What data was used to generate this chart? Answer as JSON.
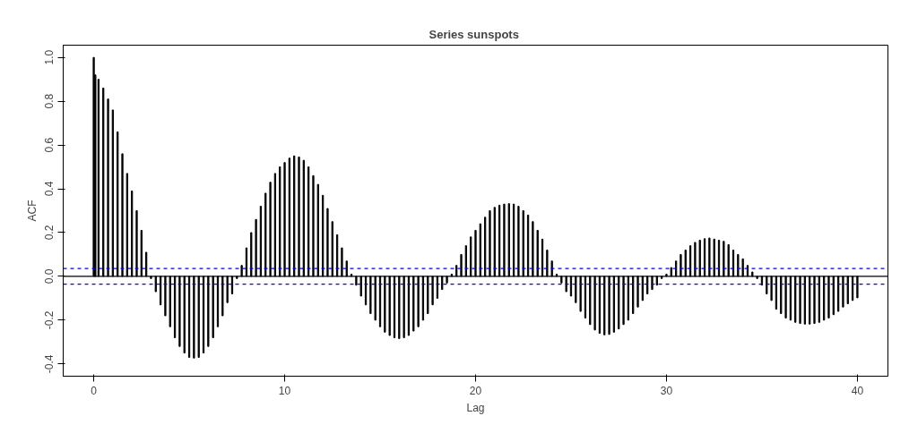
{
  "chart_data": {
    "type": "bar",
    "title": "Series  sunspots",
    "xlabel": "Lag",
    "ylabel": "ACF",
    "x": [
      0,
      0.083,
      0.25,
      0.5,
      0.75,
      1.0,
      1.25,
      1.5,
      1.75,
      2.0,
      2.25,
      2.5,
      2.75,
      3.0,
      3.25,
      3.5,
      3.75,
      4.0,
      4.25,
      4.5,
      4.75,
      5.0,
      5.25,
      5.5,
      5.75,
      6.0,
      6.25,
      6.5,
      6.75,
      7.0,
      7.25,
      7.5,
      7.75,
      8.0,
      8.25,
      8.5,
      8.75,
      9.0,
      9.25,
      9.5,
      9.75,
      10.0,
      10.25,
      10.5,
      10.75,
      11.0,
      11.25,
      11.5,
      11.75,
      12.0,
      12.25,
      12.5,
      12.75,
      13.0,
      13.25,
      13.5,
      13.75,
      14.0,
      14.25,
      14.5,
      14.75,
      15.0,
      15.25,
      15.5,
      15.75,
      16.0,
      16.25,
      16.5,
      16.75,
      17.0,
      17.25,
      17.5,
      17.75,
      18.0,
      18.25,
      18.5,
      18.75,
      19.0,
      19.25,
      19.5,
      19.75,
      20.0,
      20.25,
      20.5,
      20.75,
      21.0,
      21.25,
      21.5,
      21.75,
      22.0,
      22.25,
      22.5,
      22.75,
      23.0,
      23.25,
      23.5,
      23.75,
      24.0,
      24.25,
      24.5,
      24.75,
      25.0,
      25.25,
      25.5,
      25.75,
      26.0,
      26.25,
      26.5,
      26.75,
      27.0,
      27.25,
      27.5,
      27.75,
      28.0,
      28.25,
      28.5,
      28.75,
      29.0,
      29.25,
      29.5,
      29.75,
      30.0,
      30.25,
      30.5,
      30.75,
      31.0,
      31.25,
      31.5,
      31.75,
      32.0,
      32.25,
      32.5,
      32.75,
      33.0,
      33.25,
      33.5,
      33.75,
      34.0,
      34.25,
      34.5,
      34.75,
      35.0,
      35.25,
      35.5,
      35.75,
      36.0,
      36.25,
      36.5,
      36.75,
      37.0,
      37.25,
      37.5,
      37.75,
      38.0,
      38.25,
      38.5,
      38.75,
      39.0,
      39.25,
      39.5,
      39.75,
      40.0
    ],
    "values": [
      1.0,
      0.92,
      0.9,
      0.86,
      0.81,
      0.76,
      0.66,
      0.56,
      0.47,
      0.39,
      0.3,
      0.21,
      0.11,
      -0.01,
      -0.07,
      -0.13,
      -0.18,
      -0.23,
      -0.28,
      -0.32,
      -0.35,
      -0.37,
      -0.373,
      -0.37,
      -0.35,
      -0.32,
      -0.28,
      -0.23,
      -0.18,
      -0.12,
      -0.08,
      -0.01,
      0.05,
      0.13,
      0.2,
      0.26,
      0.32,
      0.38,
      0.43,
      0.47,
      0.5,
      0.52,
      0.54,
      0.55,
      0.545,
      0.53,
      0.5,
      0.46,
      0.42,
      0.37,
      0.31,
      0.25,
      0.19,
      0.13,
      0.07,
      0.01,
      -0.04,
      -0.09,
      -0.13,
      -0.17,
      -0.2,
      -0.23,
      -0.255,
      -0.27,
      -0.28,
      -0.284,
      -0.28,
      -0.27,
      -0.25,
      -0.23,
      -0.2,
      -0.17,
      -0.13,
      -0.1,
      -0.06,
      -0.03,
      0.01,
      0.05,
      0.1,
      0.14,
      0.18,
      0.21,
      0.24,
      0.27,
      0.3,
      0.315,
      0.325,
      0.33,
      0.332,
      0.33,
      0.32,
      0.3,
      0.28,
      0.25,
      0.21,
      0.17,
      0.12,
      0.07,
      0.01,
      -0.03,
      -0.07,
      -0.09,
      -0.12,
      -0.16,
      -0.19,
      -0.22,
      -0.245,
      -0.26,
      -0.267,
      -0.265,
      -0.255,
      -0.24,
      -0.22,
      -0.2,
      -0.17,
      -0.14,
      -0.11,
      -0.08,
      -0.06,
      -0.04,
      -0.01,
      0.01,
      0.04,
      0.07,
      0.1,
      0.12,
      0.14,
      0.155,
      0.165,
      0.172,
      0.175,
      0.17,
      0.165,
      0.16,
      0.145,
      0.12,
      0.1,
      0.08,
      0.05,
      0.02,
      -0.01,
      -0.04,
      -0.08,
      -0.11,
      -0.15,
      -0.17,
      -0.19,
      -0.2,
      -0.21,
      -0.215,
      -0.218,
      -0.218,
      -0.215,
      -0.21,
      -0.2,
      -0.19,
      -0.175,
      -0.16,
      -0.14,
      -0.125,
      -0.11,
      -0.098
    ],
    "color": "#000000",
    "xlim": [
      -1.6,
      41.6
    ],
    "ylim": [
      -0.456,
      1.056
    ],
    "xticks": [
      0,
      10,
      20,
      30,
      40
    ],
    "yticks": [
      {
        "value": -0.4,
        "label": "-0.4"
      },
      {
        "value": -0.2,
        "label": "-0.2"
      },
      {
        "value": 0,
        "label": "0.0"
      },
      {
        "value": 0.2,
        "label": "0.2"
      },
      {
        "value": 0.4,
        "label": "0.4"
      },
      {
        "value": 0.6,
        "label": "0.6"
      },
      {
        "value": 0.8,
        "label": "0.8"
      },
      {
        "value": 1.0,
        "label": "1.0"
      }
    ],
    "ref_lines": [
      {
        "axis": "y",
        "value": 0,
        "color": "#000000",
        "line_style": "solid"
      },
      {
        "axis": "y",
        "value": 0.036,
        "color": "#0000ff",
        "line_style": "dashed"
      },
      {
        "axis": "y",
        "value": -0.036,
        "color": "#0000ff",
        "line_style": "dashed"
      }
    ],
    "grid": false
  }
}
